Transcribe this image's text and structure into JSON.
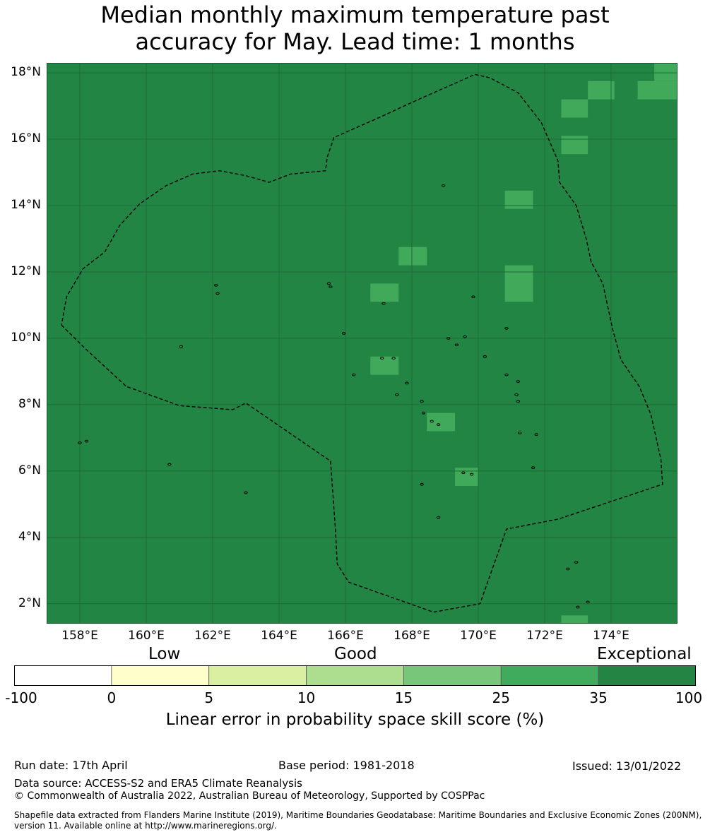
{
  "title_line1": "Median monthly maximum temperature past",
  "title_line2": "accuracy for May. Lead time: 1 months",
  "colors": {
    "base": "#238544",
    "highlight": "#40a95a",
    "grid": "#1b6a36",
    "land": "#000000"
  },
  "map": {
    "lon_range": [
      157,
      176
    ],
    "lat_range": [
      1.4,
      18.3
    ],
    "lat_ticks": [
      "18°N",
      "16°N",
      "14°N",
      "12°N",
      "10°N",
      "8°N",
      "6°N",
      "4°N",
      "2°N"
    ],
    "lat_values": [
      18,
      16,
      14,
      12,
      10,
      8,
      6,
      4,
      2
    ],
    "lon_ticks": [
      "158°E",
      "160°E",
      "162°E",
      "164°E",
      "166°E",
      "168°E",
      "170°E",
      "172°E",
      "174°E"
    ],
    "lon_values": [
      158,
      160,
      162,
      164,
      166,
      168,
      170,
      172,
      174
    ],
    "skill_category_background": "Exceptional (35–100)",
    "highlight_cells_category": "25–35",
    "highlight_cells": [
      {
        "lon": [
          175.3,
          176.0
        ],
        "lat": [
          17.75,
          18.3
        ]
      },
      {
        "lon": [
          174.8,
          176.0
        ],
        "lat": [
          17.2,
          17.75
        ]
      },
      {
        "lon": [
          173.3,
          174.1
        ],
        "lat": [
          17.2,
          17.75
        ]
      },
      {
        "lon": [
          172.5,
          173.3
        ],
        "lat": [
          16.65,
          17.2
        ]
      },
      {
        "lon": [
          172.5,
          173.3
        ],
        "lat": [
          15.55,
          16.1
        ]
      },
      {
        "lon": [
          170.8,
          171.65
        ],
        "lat": [
          13.9,
          14.45
        ]
      },
      {
        "lon": [
          167.6,
          168.45
        ],
        "lat": [
          12.2,
          12.75
        ]
      },
      {
        "lon": [
          166.75,
          167.6
        ],
        "lat": [
          11.1,
          11.65
        ]
      },
      {
        "lon": [
          170.8,
          171.65
        ],
        "lat": [
          11.1,
          12.2
        ]
      },
      {
        "lon": [
          166.75,
          167.6
        ],
        "lat": [
          8.9,
          9.45
        ]
      },
      {
        "lon": [
          168.45,
          169.3
        ],
        "lat": [
          7.2,
          7.75
        ]
      },
      {
        "lon": [
          169.3,
          170.0
        ],
        "lat": [
          5.55,
          6.1
        ]
      },
      {
        "lon": [
          172.5,
          173.3
        ],
        "lat": [
          1.4,
          1.65
        ]
      }
    ],
    "eez_boundary": [
      [
        157.45,
        10.4
      ],
      [
        158.15,
        9.7
      ],
      [
        159.4,
        8.55
      ],
      [
        161.0,
        7.97
      ],
      [
        162.6,
        7.85
      ],
      [
        163.0,
        8.05
      ],
      [
        165.55,
        6.3
      ],
      [
        165.7,
        4.2
      ],
      [
        165.75,
        3.2
      ],
      [
        166.1,
        2.65
      ],
      [
        168.65,
        1.75
      ],
      [
        170.05,
        2.0
      ],
      [
        170.85,
        4.25
      ],
      [
        172.4,
        4.55
      ],
      [
        175.55,
        5.6
      ],
      [
        175.5,
        6.35
      ],
      [
        175.2,
        7.7
      ],
      [
        174.85,
        8.55
      ],
      [
        174.3,
        9.35
      ],
      [
        174.05,
        10.25
      ],
      [
        173.75,
        11.65
      ],
      [
        173.4,
        12.3
      ],
      [
        173.25,
        13.0
      ],
      [
        172.95,
        14.0
      ],
      [
        172.45,
        14.7
      ],
      [
        172.4,
        15.35
      ],
      [
        171.9,
        16.5
      ],
      [
        171.2,
        17.4
      ],
      [
        170.35,
        17.85
      ],
      [
        169.9,
        17.95
      ],
      [
        168.2,
        17.2
      ],
      [
        166.9,
        16.6
      ],
      [
        165.65,
        16.05
      ],
      [
        165.45,
        15.45
      ],
      [
        165.4,
        15.05
      ],
      [
        164.35,
        14.95
      ],
      [
        163.7,
        14.7
      ],
      [
        163.0,
        14.9
      ],
      [
        162.2,
        15.05
      ],
      [
        161.4,
        14.95
      ],
      [
        160.6,
        14.6
      ],
      [
        159.8,
        14.05
      ],
      [
        159.2,
        13.4
      ],
      [
        158.75,
        12.6
      ],
      [
        158.1,
        12.1
      ],
      [
        157.6,
        11.25
      ],
      [
        157.45,
        10.4
      ]
    ],
    "islands": [
      [
        158.2,
        6.9
      ],
      [
        158.0,
        6.85
      ],
      [
        160.7,
        6.2
      ],
      [
        161.05,
        9.75
      ],
      [
        162.1,
        11.6
      ],
      [
        162.15,
        11.35
      ],
      [
        163.0,
        5.35
      ],
      [
        165.5,
        11.65
      ],
      [
        165.55,
        11.55
      ],
      [
        165.95,
        10.15
      ],
      [
        166.25,
        8.9
      ],
      [
        167.15,
        11.05
      ],
      [
        167.1,
        9.4
      ],
      [
        167.45,
        9.4
      ],
      [
        167.85,
        8.65
      ],
      [
        167.55,
        8.3
      ],
      [
        168.3,
        8.1
      ],
      [
        168.35,
        7.75
      ],
      [
        168.6,
        7.5
      ],
      [
        168.8,
        7.4
      ],
      [
        168.95,
        14.6
      ],
      [
        168.3,
        5.6
      ],
      [
        168.8,
        4.6
      ],
      [
        169.1,
        10.0
      ],
      [
        169.35,
        9.8
      ],
      [
        169.6,
        10.05
      ],
      [
        169.55,
        5.95
      ],
      [
        169.8,
        5.9
      ],
      [
        169.85,
        11.25
      ],
      [
        170.2,
        9.45
      ],
      [
        170.85,
        10.3
      ],
      [
        170.85,
        8.9
      ],
      [
        171.2,
        8.7
      ],
      [
        171.15,
        8.3
      ],
      [
        171.2,
        8.1
      ],
      [
        171.25,
        7.15
      ],
      [
        171.75,
        7.1
      ],
      [
        171.65,
        6.1
      ],
      [
        172.7,
        3.05
      ],
      [
        172.95,
        3.25
      ],
      [
        173.0,
        1.9
      ],
      [
        173.3,
        2.05
      ]
    ]
  },
  "colorbar": {
    "categories": [
      {
        "label": "Low"
      },
      {
        "label": "Good"
      },
      {
        "label": "Exceptional"
      }
    ],
    "colors": [
      "#ffffff",
      "#ffffcc",
      "#d9f0a3",
      "#addd8e",
      "#78c679",
      "#41ab5d",
      "#238443"
    ],
    "ticks": [
      "-100",
      "0",
      "5",
      "10",
      "15",
      "25",
      "35",
      "100"
    ],
    "label": "Linear error in probability space skill score (%)"
  },
  "footer": {
    "run_date": "Run date: 17th April",
    "base_period": "Base period: 1981-2018",
    "issued": "Issued: 13/01/2022",
    "data_source": "Data source: ACCESS-S2 and ERA5 Climate Reanalysis",
    "copyright": "© Commonwealth of Australia 2022, Australian Bureau of Meteorology, Supported by COSPPac",
    "shapefile_line1": "Shapefile data extracted from Flanders Marine Institute (2019), Maritime Boundaries Geodatabase: Maritime Boundaries and Exclusive Economic Zones (200NM),",
    "shapefile_line2": "version 11. Available online at http://www.marineregions.org/."
  }
}
